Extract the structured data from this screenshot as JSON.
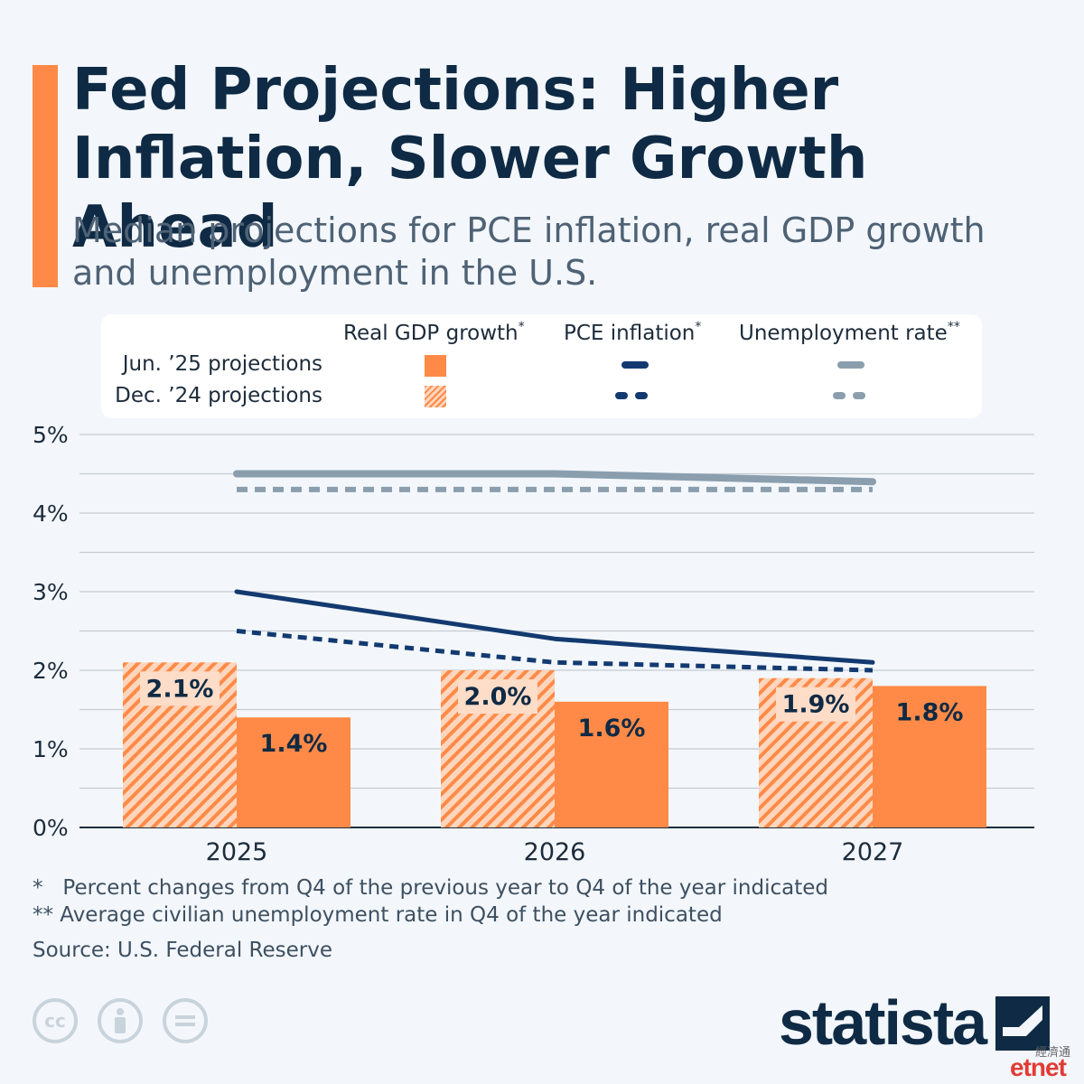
{
  "header": {
    "title": "Fed Projections: Higher Inflation, Slower Growth Ahead",
    "subtitle": "Median projections for PCE inflation, real GDP growth and unemployment in the U.S."
  },
  "legend": {
    "columns": [
      {
        "label": "Real GDP growth",
        "mark": "*"
      },
      {
        "label": "PCE inflation",
        "mark": "*"
      },
      {
        "label": "Unemployment rate",
        "mark": "**"
      }
    ],
    "rows": [
      "Jun. ’25 projections",
      "Dec. ’24 projections"
    ]
  },
  "colors": {
    "gdp": "#ff8a47",
    "gdp_hatch_light": "#ffd6bd",
    "pce": "#133a70",
    "unemployment": "#8a9eae",
    "grid": "#c5ccd3",
    "axis": "#1d2c3b",
    "text": "#0f2a44"
  },
  "chart_data": {
    "type": "bar",
    "categories": [
      "2025",
      "2026",
      "2027"
    ],
    "y_ticks": [
      "0%",
      "1%",
      "2%",
      "3%",
      "4%",
      "5%"
    ],
    "ylim": [
      0,
      5
    ],
    "grid": true,
    "series": [
      {
        "name": "Real GDP growth — Dec. ’24 projections",
        "kind": "bar",
        "style": "hatched",
        "values": [
          2.1,
          2.0,
          1.9
        ],
        "labels": [
          "2.1%",
          "2.0%",
          "1.9%"
        ]
      },
      {
        "name": "Real GDP growth — Jun. ’25 projections",
        "kind": "bar",
        "style": "solid",
        "values": [
          1.4,
          1.6,
          1.8
        ],
        "labels": [
          "1.4%",
          "1.6%",
          "1.8%"
        ]
      },
      {
        "name": "PCE inflation — Jun. ’25 projections",
        "kind": "line",
        "style": "solid",
        "values": [
          3.0,
          2.4,
          2.1
        ]
      },
      {
        "name": "PCE inflation — Dec. ’24 projections",
        "kind": "line",
        "style": "dashed",
        "values": [
          2.5,
          2.1,
          2.0
        ]
      },
      {
        "name": "Unemployment rate — Jun. ’25 projections",
        "kind": "line",
        "style": "solid",
        "values": [
          4.5,
          4.5,
          4.4
        ]
      },
      {
        "name": "Unemployment rate — Dec. ’24 projections",
        "kind": "line",
        "style": "dashed",
        "values": [
          4.3,
          4.3,
          4.3
        ]
      }
    ]
  },
  "footnotes": {
    "note1": "*   Percent changes from Q4 of the previous year to Q4 of the year indicated",
    "note2": "** Average civilian unemployment rate in Q4 of the year indicated",
    "source": "Source: U.S. Federal Reserve"
  },
  "license_icons": [
    "cc-icon",
    "attribution-icon",
    "no-derivatives-icon"
  ],
  "brand": {
    "name": "statista",
    "watermark_cn": "經濟通",
    "watermark": "etnet"
  }
}
